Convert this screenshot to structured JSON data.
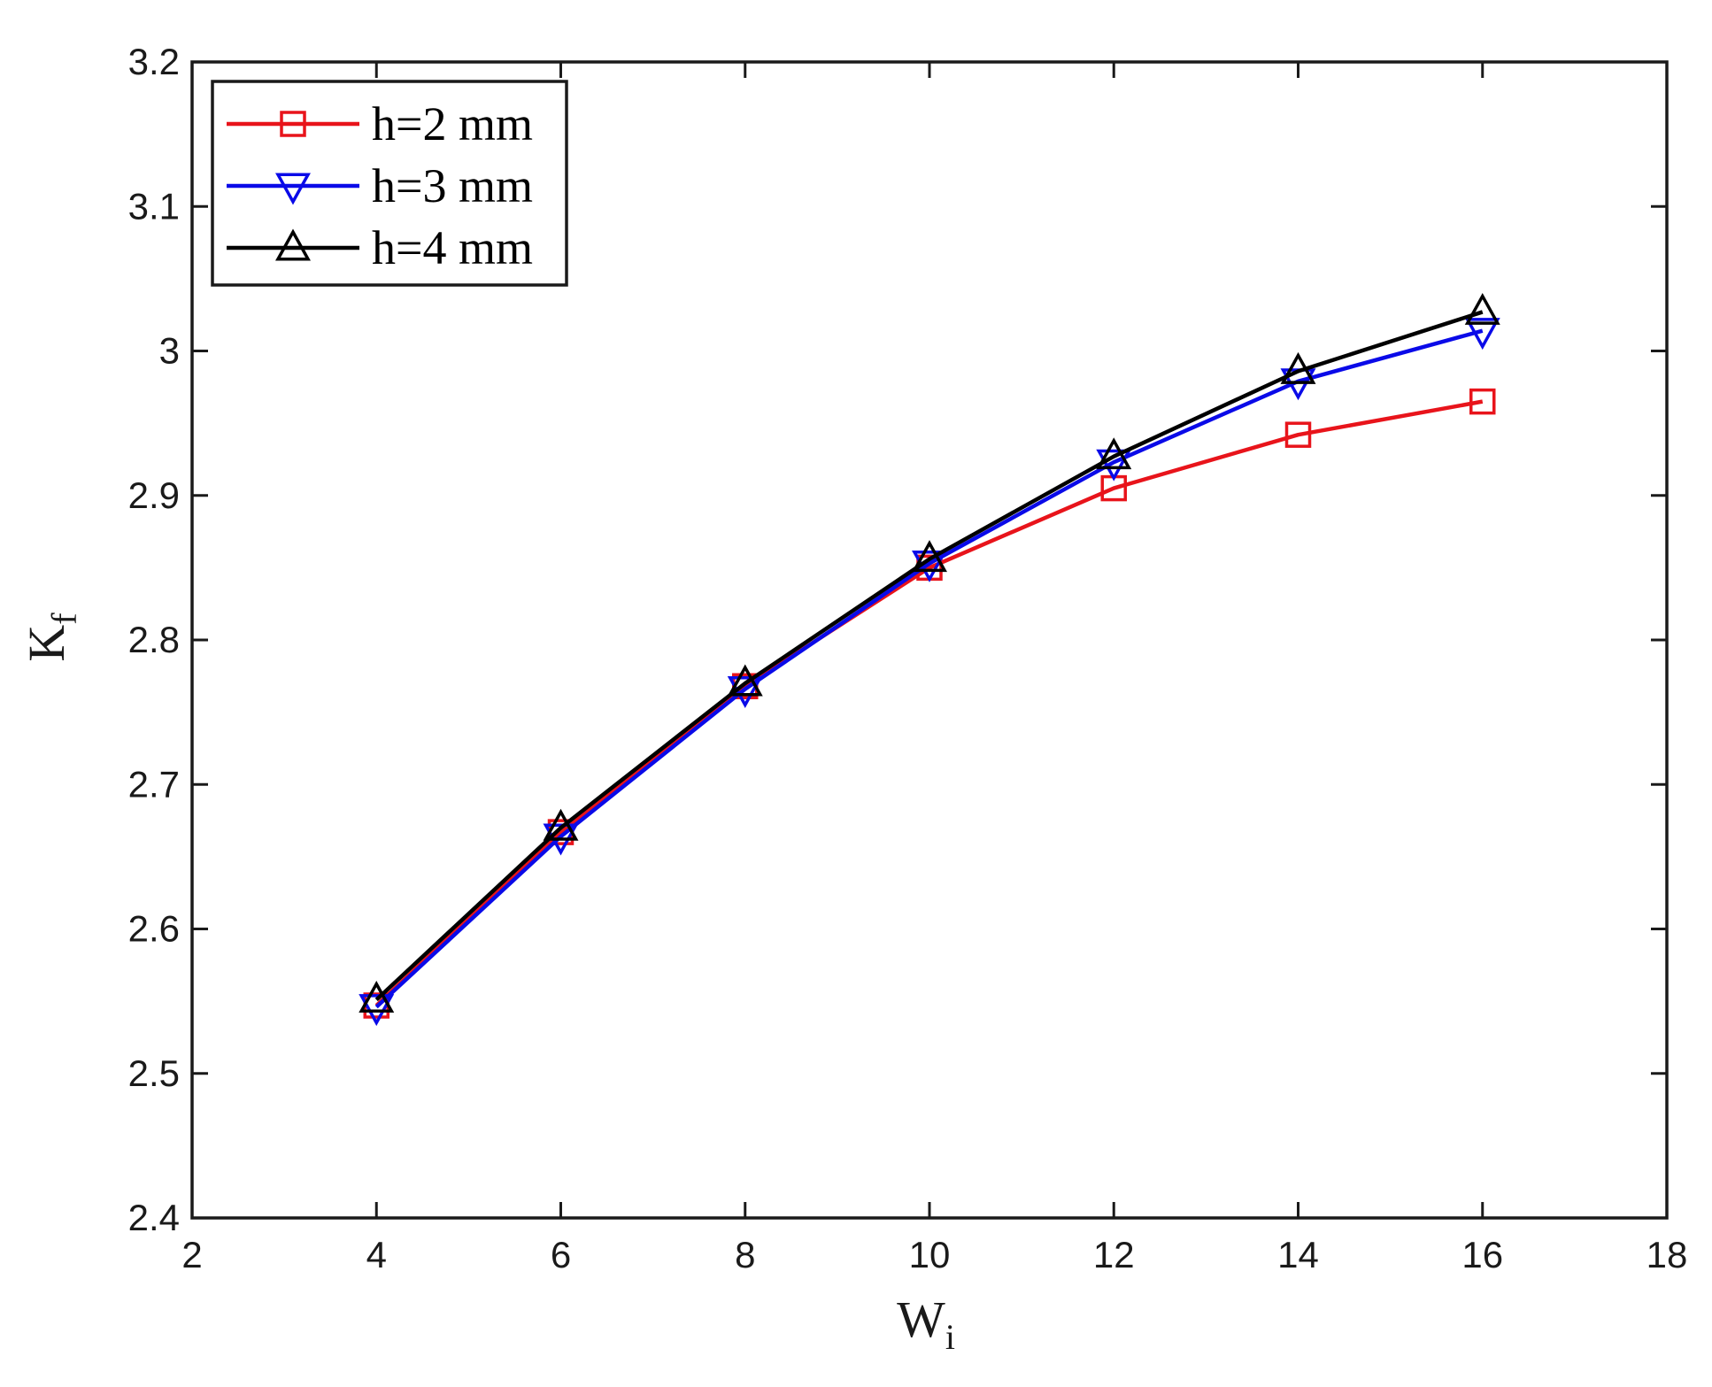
{
  "chart_data": {
    "type": "line",
    "title": "",
    "xlabel": {
      "main": "W",
      "sub": "i"
    },
    "ylabel": {
      "main": "K",
      "sub": "f"
    },
    "xlim": [
      2,
      18
    ],
    "ylim": [
      2.4,
      3.2
    ],
    "xticks": [
      2,
      4,
      6,
      8,
      10,
      12,
      14,
      16,
      18
    ],
    "yticks": [
      2.4,
      2.5,
      2.6,
      2.7,
      2.8,
      2.9,
      3,
      3.1,
      3.2
    ],
    "xtick_labels": [
      "2",
      "4",
      "6",
      "8",
      "10",
      "12",
      "14",
      "16",
      "18"
    ],
    "ytick_labels": [
      "2.4",
      "2.5",
      "2.6",
      "2.7",
      "2.8",
      "2.9",
      "3",
      "3.1",
      "3.2"
    ],
    "grid": false,
    "legend_position": "top-left",
    "x": [
      4,
      6,
      8,
      10,
      12,
      14,
      16
    ],
    "series": [
      {
        "name": "h=2 mm",
        "color": "#e8141b",
        "marker": "square",
        "values": [
          2.547,
          2.667,
          2.768,
          2.85,
          2.905,
          2.942,
          2.965
        ]
      },
      {
        "name": "h=3 mm",
        "color": "#0a0ae8",
        "marker": "triangle-down",
        "values": [
          2.546,
          2.664,
          2.766,
          2.853,
          2.923,
          2.979,
          3.014
        ]
      },
      {
        "name": "h=4 mm",
        "color": "#000000",
        "marker": "triangle-up",
        "values": [
          2.551,
          2.67,
          2.77,
          2.856,
          2.927,
          2.986,
          3.027
        ]
      }
    ]
  }
}
